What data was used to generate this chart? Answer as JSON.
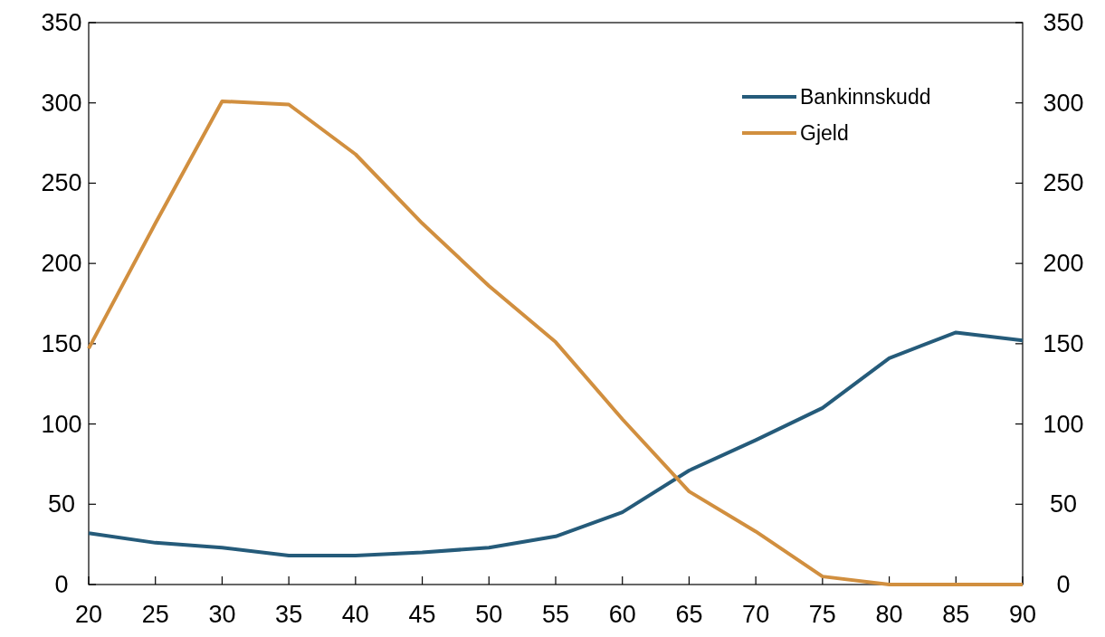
{
  "chart_data": {
    "type": "line",
    "x": [
      20,
      25,
      30,
      35,
      40,
      45,
      50,
      55,
      60,
      65,
      70,
      75,
      80,
      85,
      90
    ],
    "xlim": [
      20,
      90
    ],
    "xticks": [
      20,
      25,
      30,
      35,
      40,
      45,
      50,
      55,
      60,
      65,
      70,
      75,
      80,
      85,
      90
    ],
    "ylim": [
      0,
      350
    ],
    "yticks": [
      0,
      50,
      100,
      150,
      200,
      250,
      300,
      350
    ],
    "y2lim": [
      0,
      350
    ],
    "y2ticks": [
      0,
      50,
      100,
      150,
      200,
      250,
      300,
      350
    ],
    "legend": "top right",
    "grid": false,
    "series": [
      {
        "name": "Bankinnskudd",
        "color": "#255b7a",
        "values": [
          32,
          26,
          23,
          18,
          18,
          20,
          23,
          30,
          45,
          71,
          90,
          110,
          141,
          157,
          152
        ]
      },
      {
        "name": "Gjeld",
        "color": "#d18f3f",
        "values": [
          147,
          225,
          301,
          299,
          268,
          225,
          186,
          151,
          103,
          58,
          33,
          5,
          0,
          0,
          0
        ]
      }
    ]
  }
}
